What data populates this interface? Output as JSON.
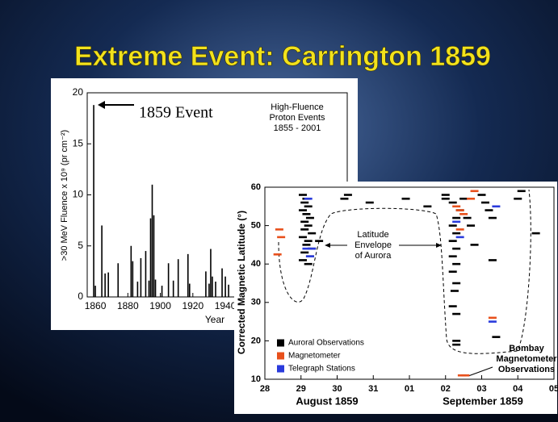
{
  "title": "Extreme Event: Carrington 1859",
  "chart_data": [
    {
      "type": "bar",
      "color": "#000000",
      "annotation": "1859 Event",
      "legend_text": [
        "High-Fluence",
        "Proton Events",
        "1855 - 2001"
      ],
      "x_label": "Year",
      "y_label": ">30 MeV Fluence x 10⁹ (pr cm⁻²)",
      "x": [
        1859,
        1860,
        1864,
        1866,
        1868,
        1874,
        1882,
        1883,
        1886,
        1888,
        1891,
        1893,
        1894,
        1895,
        1896,
        1897,
        1901,
        1905,
        1908,
        1911,
        1917,
        1918,
        1928,
        1930,
        1931,
        1932,
        1934,
        1938,
        1940,
        1942
      ],
      "values": [
        18.8,
        1.1,
        7.0,
        2.3,
        2.4,
        3.3,
        5.0,
        3.5,
        1.5,
        3.8,
        4.5,
        1.6,
        7.7,
        11.0,
        8.0,
        1.7,
        1.1,
        3.3,
        1.6,
        3.7,
        4.2,
        1.3,
        2.5,
        1.3,
        4.7,
        2.0,
        1.5,
        2.8,
        2.0,
        1.2
      ],
      "xlim": [
        1855,
        2015
      ],
      "xticks": [
        1860,
        1880,
        1900,
        1920,
        1940
      ],
      "ylim": [
        0,
        20
      ],
      "yticks": [
        0,
        5,
        10,
        15,
        20
      ]
    },
    {
      "type": "scatter",
      "y_label": "Corrected Magnetic Latitude (°)",
      "month_labels": [
        "August 1859",
        "September 1859"
      ],
      "annotations": [
        [
          "Latitude",
          "Envelope",
          "of Aurora"
        ],
        [
          "Bombay",
          "Magnetometer",
          "Observations"
        ]
      ],
      "xlim": [
        0,
        8
      ],
      "xticks": [
        {
          "value": 0,
          "label": "28"
        },
        {
          "value": 1,
          "label": "29"
        },
        {
          "value": 2,
          "label": "30"
        },
        {
          "value": 3,
          "label": "31"
        },
        {
          "value": 4,
          "label": "01"
        },
        {
          "value": 5,
          "label": "02"
        },
        {
          "value": 6,
          "label": "03"
        },
        {
          "value": 7,
          "label": "04"
        },
        {
          "value": 8,
          "label": "05"
        }
      ],
      "ylim": [
        10,
        60
      ],
      "yticks": [
        10,
        20,
        30,
        40,
        50,
        60
      ],
      "series": [
        {
          "name": "Auroral Observations",
          "color": "#000000",
          "x": [
            1.05,
            1.15,
            1.1,
            1.2,
            1.05,
            1.15,
            1.25,
            1.1,
            1.2,
            1.1,
            1.3,
            1.05,
            1.2,
            1.15,
            1.3,
            1.1,
            1.25,
            1.05,
            1.2,
            1.5,
            2.2,
            2.3,
            2.9,
            3.9,
            4.5,
            5.0,
            5.0,
            5.2,
            5.4,
            5.3,
            5.2,
            5.3,
            5.2,
            5.3,
            5.2,
            5.3,
            5.2,
            5.3,
            5.25,
            5.2,
            5.3,
            5.3,
            5.3,
            5.6,
            5.7,
            5.5,
            6.0,
            6.1,
            6.2,
            6.3,
            6.3,
            6.4,
            7.1,
            7.0,
            7.5,
            5.8
          ],
          "values": [
            58,
            57,
            56,
            55,
            54,
            53,
            52,
            51,
            50,
            49,
            48,
            47,
            46,
            45,
            44,
            43,
            42,
            41,
            40,
            46,
            57,
            58,
            56,
            57,
            55,
            57,
            58,
            56,
            54,
            52,
            50,
            48,
            46,
            44,
            42,
            40,
            38,
            35,
            33,
            29,
            27,
            20,
            19,
            52,
            50,
            57,
            58,
            56,
            54,
            52,
            41,
            21,
            59,
            57,
            48,
            45
          ]
        },
        {
          "name": "Magnetometer",
          "color": "#e8501c",
          "x": [
            0.4,
            0.45,
            0.35,
            5.3,
            5.4,
            5.4,
            5.7,
            5.5,
            6.3,
            5.8,
            5.45,
            5.55
          ],
          "values": [
            49,
            47,
            42.5,
            55,
            54,
            49,
            57,
            53,
            26,
            59,
            11,
            11
          ]
        },
        {
          "name": "Telegraph Stations",
          "color": "#2a3bdc",
          "x": [
            1.2,
            1.15,
            1.3,
            1.25,
            5.3,
            5.4,
            6.3,
            6.4
          ],
          "values": [
            57,
            44,
            44,
            42,
            51,
            47,
            25,
            55
          ]
        }
      ]
    }
  ]
}
